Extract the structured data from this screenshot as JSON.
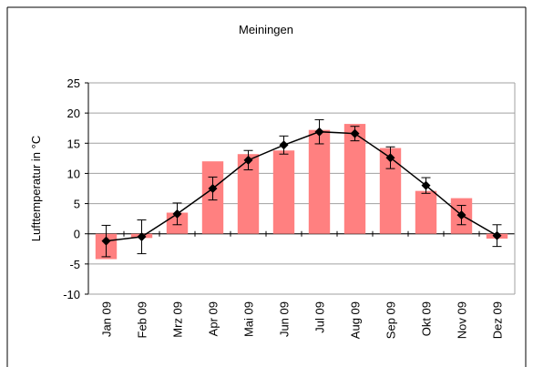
{
  "chart_data": {
    "type": "bar_line_error",
    "title": "Meiningen",
    "y_label": "Lufttemperatur in °C",
    "categories": [
      "Jan 09",
      "Feb 09",
      "Mrz 09",
      "Apr 09",
      "Mai 09",
      "Jun 09",
      "Jul 09",
      "Aug 09",
      "Sep 09",
      "Okt 09",
      "Nov 09",
      "Dez 09"
    ],
    "series": [
      {
        "type": "bar",
        "color": "#ff8080",
        "values": [
          -4.2,
          -0.7,
          3.5,
          12.0,
          13.2,
          13.8,
          17.2,
          18.2,
          14.2,
          7.1,
          5.9,
          -0.8
        ]
      },
      {
        "type": "line",
        "color": "#000000",
        "values": [
          -1.2,
          -0.5,
          3.3,
          7.5,
          12.2,
          14.7,
          16.9,
          16.6,
          12.6,
          8.0,
          3.1,
          -0.3
        ],
        "errors": [
          2.6,
          2.8,
          1.8,
          1.9,
          1.6,
          1.5,
          2.0,
          1.2,
          1.8,
          1.3,
          1.6,
          1.8
        ]
      }
    ],
    "ylim": [
      -10,
      25
    ],
    "yticks": [
      -10,
      -5,
      0,
      5,
      10,
      15,
      20,
      25
    ],
    "grid": true
  }
}
